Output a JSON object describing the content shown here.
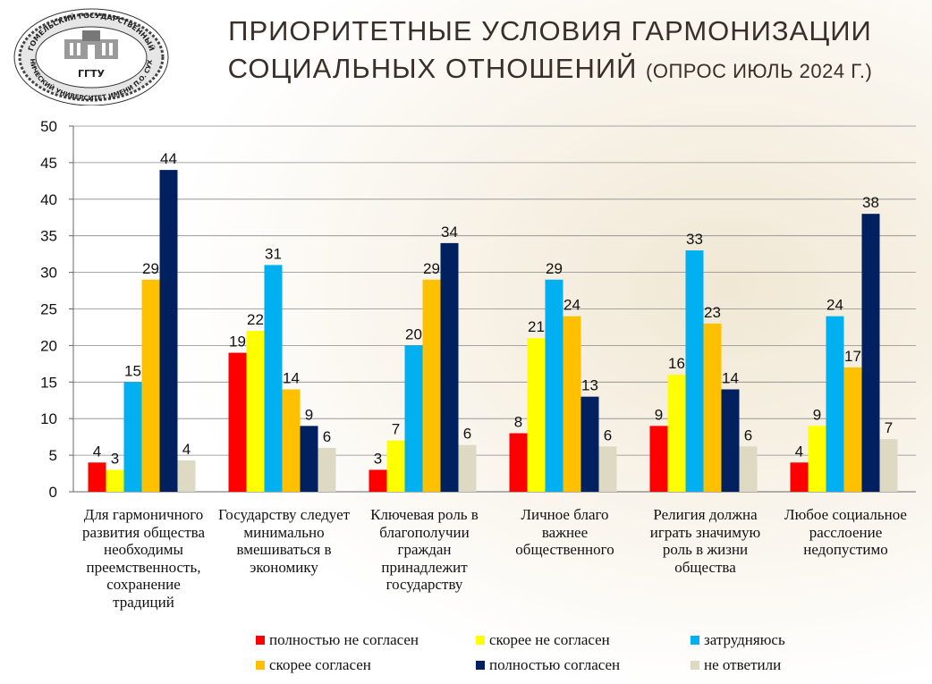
{
  "header": {
    "title_line1": "ПРИОРИТЕТНЫЕ УСЛОВИЯ ГАРМОНИЗАЦИИ",
    "title_line2_main": "СОЦИАЛЬНЫХ ОТНОШЕНИЙ",
    "title_line2_sub": "(ОПРОС ИЮЛЬ 2024 Г.)"
  },
  "logo": {
    "ring_text_top": "ГОМЕЛЬСКИЙ ГОСУДАРСТВЕННЫЙ",
    "ring_text_bottom": "ТЕХНИЧЕСКИЙ УНИВЕРСИТЕТ ИМЕНИ П.О. СУХОГО",
    "center_text": "ГГТУ"
  },
  "chart_data": {
    "type": "bar",
    "categories": [
      "Для гармоничного развития общества необходимы преемственность, сохранение традиций",
      "Государству следует минимально вмешиваться в экономику",
      "Ключевая роль в благополучии граждан принадлежит государству",
      "Личное благо важнее общественного",
      "Религия должна играть значимую роль в жизни общества",
      "Любое социальное расслоение недопустимо"
    ],
    "series": [
      {
        "name": "полностью не согласен",
        "color": "#ff0000",
        "values": [
          4,
          19,
          3,
          8,
          9,
          4
        ]
      },
      {
        "name": "скорее не согласен",
        "color": "#ffff00",
        "values": [
          3,
          22,
          7,
          21,
          16,
          9
        ]
      },
      {
        "name": "затрудняюсь",
        "color": "#00b0f0",
        "values": [
          15,
          31,
          20,
          29,
          33,
          24
        ]
      },
      {
        "name": "скорее  согласен",
        "color": "#ffc000",
        "values": [
          29,
          14,
          29,
          24,
          23,
          17
        ]
      },
      {
        "name": "полностью согласен",
        "color": "#002060",
        "values": [
          44,
          9,
          34,
          13,
          14,
          38
        ]
      },
      {
        "name": "не ответили",
        "color": "#ddd9c3",
        "values": [
          4.3,
          6,
          6.4,
          6.2,
          6.2,
          7.2
        ]
      }
    ],
    "data_labels": [
      [
        "4",
        "19",
        "3",
        "8",
        "9",
        "4"
      ],
      [
        "3",
        "22",
        "7",
        "21",
        "16",
        "9"
      ],
      [
        "15",
        "31",
        "20",
        "29",
        "33",
        "24"
      ],
      [
        "29",
        "14",
        "29",
        "24",
        "23",
        "17"
      ],
      [
        "44",
        "9",
        "34",
        "13",
        "14",
        "38"
      ],
      [
        "4",
        "6",
        "6",
        "6",
        "6",
        "7"
      ]
    ],
    "y_ticks": [
      "0",
      "5",
      "10",
      "15",
      "20",
      "25",
      "30",
      "35",
      "40",
      "45",
      "50"
    ],
    "ylim": [
      0,
      50
    ],
    "grid": true,
    "legend_position": "bottom"
  }
}
